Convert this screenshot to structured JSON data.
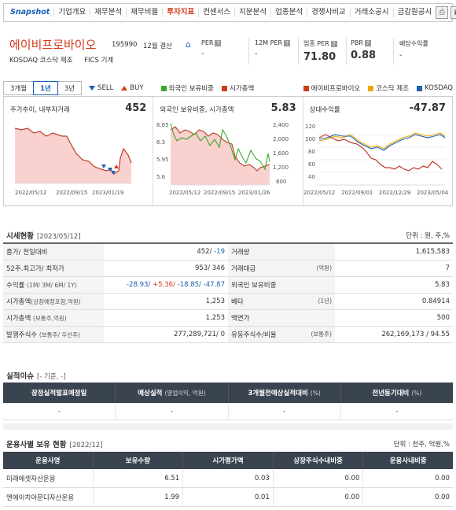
{
  "nav": {
    "brand": "Snapshot",
    "tabs": [
      "기업개요",
      "재무분석",
      "재무비율",
      "투자지표",
      "컨센서스",
      "지분분석",
      "업종분석",
      "경쟁사비교",
      "거래소공시",
      "금감원공시"
    ],
    "active": "투자지표",
    "icons": [
      "printer-icon",
      "popup-icon"
    ]
  },
  "header": {
    "company_name": "에이비프로바이오",
    "code": "195990",
    "settlement": "12월 결산",
    "market": "KOSDAQ  코스닥 제조",
    "fics": "FICS 기계",
    "metrics": [
      {
        "label": "PER",
        "value": "-"
      },
      {
        "label": "12M PER",
        "value": "-"
      },
      {
        "label": "업종 PER",
        "value": "71.80"
      },
      {
        "label": "PBR",
        "value": "0.88"
      },
      {
        "label": "배당수익률",
        "value": "-"
      }
    ]
  },
  "period_bar": {
    "buttons": [
      "3개월",
      "1년",
      "3년"
    ],
    "active": "1년",
    "sell": "SELL",
    "buy": "BUY",
    "legend_left": [
      {
        "label": "외국인 보유비중",
        "color": "#3aa82a"
      },
      {
        "label": "시가총액",
        "color": "#d23b1a"
      }
    ],
    "legend_right": [
      {
        "label": "에이비프로바이오",
        "color": "#d23b1a"
      },
      {
        "label": "코스닥 제조",
        "color": "#f0a800"
      },
      {
        "label": "KOSDAQ",
        "color": "#1a5fb4"
      }
    ]
  },
  "charts": {
    "price": {
      "title": "주가추이, 내부자거래",
      "value": "452",
      "x_labels": [
        "2022/05/12",
        "2022/09/15",
        "2023/01/19"
      ]
    },
    "foreign": {
      "title": "외국인 보유비중, 시가총액",
      "value": "5.83",
      "y_left": [
        "6.65",
        "6.3",
        "5.95",
        "5.6"
      ],
      "y_right": [
        "2,400",
        "2,000",
        "1,600",
        "1,200",
        "800"
      ],
      "x_labels": [
        "2022/05/12",
        "2022/09/15",
        "2023/01/26"
      ]
    },
    "relative": {
      "title": "상대수익률",
      "value": "-47.87",
      "y_left": [
        "120",
        "100",
        "80",
        "60",
        "40"
      ],
      "x_labels": [
        "2022/05/12",
        "2022/09/01",
        "2022/12/29",
        "2023/05/04"
      ]
    }
  },
  "sise": {
    "title": "시세현황",
    "date": "[2023/05/12]",
    "unit": "단위 : 원, 주,%",
    "rows": [
      {
        "l1": "종가/ 전일대비",
        "l1s": "",
        "v1a": "452/",
        "v1b": "-19",
        "l2": "거래량",
        "l2s": "",
        "v2": "1,615,583"
      },
      {
        "l1": "52주.최고가/ 최저가",
        "l1s": "",
        "v1a": "953/ 346",
        "v1b": "",
        "l2": "거래대금",
        "l2s": "(억원)",
        "v2": "7"
      },
      {
        "l1": "수익률",
        "l1s": "(1M/ 3M/ 6M/ 1Y)",
        "v1a": "",
        "v1b": "",
        "l2": "외국인 보유비중",
        "l2s": "",
        "v2": "5.83"
      },
      {
        "l1": "시가총액",
        "l1s": "(상장예정포함,억원)",
        "v1a": "1,253",
        "v1b": "",
        "l2": "베타",
        "l2s": "(1년)",
        "v2": "0.84914"
      },
      {
        "l1": "시가총액",
        "l1s": "(보통주,억원)",
        "v1a": "1,253",
        "v1b": "",
        "l2": "액면가",
        "l2s": "",
        "v2": "500"
      },
      {
        "l1": "발행주식수",
        "l1s": "(보통주/ 우선주)",
        "v1a": "277,289,721/ 0",
        "v1b": "",
        "l2": "유동주식수/비율",
        "l2s": "(보통주)",
        "v2": "262,169,173 / 94.55"
      }
    ],
    "returns": {
      "m1": "-28.93/",
      "m3": "+5.36/",
      "m6": "-18.85/",
      "y1": "-47.87"
    }
  },
  "earnings": {
    "title": "실적이슈",
    "sub": "[- 기준, -]",
    "headers": [
      {
        "main": "잠정실적발표예정일",
        "sub": ""
      },
      {
        "main": "예상실적",
        "sub": "(영업이익, 억원)"
      },
      {
        "main": "3개월전예상실적대비",
        "sub": "(%)"
      },
      {
        "main": "전년동기대비",
        "sub": "(%)"
      }
    ],
    "row": [
      "-",
      "-",
      "-",
      "-"
    ]
  },
  "funds": {
    "title": "운용사별 보유 현황",
    "date": "[2022/12]",
    "unit": "단위 : 천주, 억원,%",
    "headers": [
      "운용사명",
      "보유수량",
      "시가평가액",
      "상장주식수내비중",
      "운용사내비중"
    ],
    "rows": [
      [
        "미래에셋자산운용",
        "6.51",
        "0.03",
        "0.00",
        "0.00"
      ],
      [
        "엔에이치아문디자산운용",
        "1.99",
        "0.01",
        "0.00",
        "0.00"
      ]
    ]
  }
}
